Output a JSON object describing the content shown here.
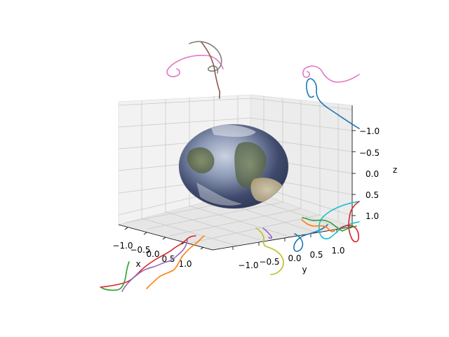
{
  "chart_data": {
    "type": "3d-line",
    "title": "",
    "axes": {
      "x": {
        "label": "x",
        "ticks": [
          "−1.0",
          "−0.5",
          "0.0",
          "0.5",
          "1.0"
        ],
        "lim": [
          -1.3,
          1.3
        ]
      },
      "y": {
        "label": "y",
        "ticks": [
          "−1.0",
          "−0.5",
          "0.0",
          "0.5",
          "1.0"
        ],
        "lim": [
          -1.3,
          1.3
        ]
      },
      "z": {
        "label": "z",
        "ticks": [
          "−1.0",
          "−0.5",
          "0.0",
          "0.5",
          "1.0"
        ],
        "lim": [
          -1.3,
          1.3
        ],
        "inverted": true
      }
    },
    "grid": true,
    "legend": "none",
    "surface": {
      "name": "earth-texture sphere",
      "center": [
        0,
        0,
        0
      ],
      "radius": 1.0
    },
    "series_colors": [
      "#1f77b4",
      "#ff7f0e",
      "#2ca02c",
      "#d62728",
      "#9467bd",
      "#8c564b",
      "#e377c2",
      "#7f7f7f",
      "#bcbd22",
      "#17becf"
    ]
  }
}
